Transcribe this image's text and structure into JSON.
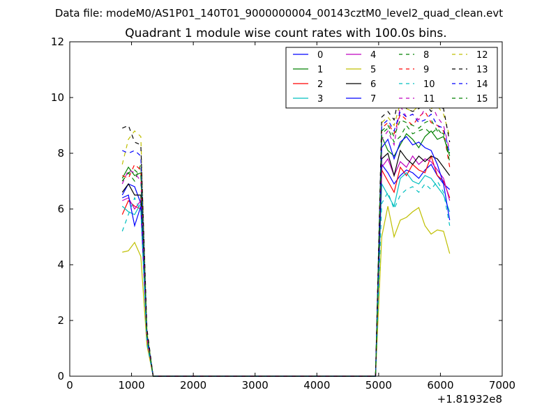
{
  "chart_data": {
    "type": "line",
    "suptitle": "Data file: modeM0/AS1P01_140T01_9000000004_00143cztM0_level2_quad_clean.evt",
    "title": "Quadrant 1 module wise count rates with 100.0s bins.",
    "xlabel": "",
    "ylabel": "",
    "xlim": [
      0,
      7000
    ],
    "ylim": [
      0,
      12
    ],
    "x_offset_label": "+1.81932e8",
    "x_ticks": [
      0,
      1000,
      2000,
      3000,
      4000,
      5000,
      6000,
      7000
    ],
    "y_ticks": [
      0,
      2,
      4,
      6,
      8,
      10,
      12
    ],
    "grid": false,
    "legend_position": "top-right",
    "legend_columns": 4,
    "x": [
      850,
      950,
      1050,
      1150,
      1250,
      1350,
      1450,
      4950,
      5050,
      5150,
      5250,
      5350,
      5450,
      5550,
      5650,
      5750,
      5850,
      5950,
      6050,
      6150
    ],
    "series": [
      {
        "name": "0",
        "color": "#0000ff",
        "dash": "solid",
        "values": [
          6.5,
          6.9,
          6.8,
          6.2,
          1.4,
          0,
          0,
          0,
          7.6,
          7.3,
          6.9,
          7.2,
          7.4,
          7.3,
          7.1,
          7.4,
          7.6,
          7.2,
          6.9,
          6.7
        ]
      },
      {
        "name": "1",
        "color": "#008000",
        "dash": "solid",
        "values": [
          7.1,
          7.5,
          7.2,
          7.3,
          1.5,
          0,
          0,
          0,
          8.6,
          8.1,
          7.9,
          8.3,
          8.7,
          8.5,
          8.2,
          8.6,
          8.8,
          8.5,
          8.6,
          7.9
        ]
      },
      {
        "name": "2",
        "color": "#ff0000",
        "dash": "solid",
        "values": [
          5.8,
          6.3,
          6.1,
          6.0,
          1.3,
          0,
          0,
          0,
          7.4,
          7.0,
          6.6,
          7.5,
          7.2,
          7.6,
          7.4,
          7.3,
          7.9,
          7.2,
          7.0,
          6.4
        ]
      },
      {
        "name": "3",
        "color": "#00bfbf",
        "dash": "solid",
        "values": [
          6.1,
          5.9,
          5.8,
          6.2,
          1.2,
          0,
          0,
          0,
          6.9,
          6.5,
          6.1,
          7.1,
          7.3,
          7.0,
          6.9,
          7.2,
          7.1,
          6.8,
          6.5,
          5.9
        ]
      },
      {
        "name": "4",
        "color": "#bf00bf",
        "dash": "solid",
        "values": [
          6.3,
          6.4,
          6.0,
          6.3,
          1.3,
          0,
          0,
          0,
          7.5,
          7.8,
          7.2,
          7.7,
          7.5,
          7.9,
          7.6,
          7.8,
          7.7,
          7.4,
          7.1,
          6.3
        ]
      },
      {
        "name": "5",
        "color": "#bfbf00",
        "dash": "solid",
        "values": [
          4.45,
          4.5,
          4.8,
          4.3,
          1.1,
          0,
          0,
          0,
          5.0,
          6.1,
          5.0,
          5.6,
          5.7,
          5.9,
          6.05,
          5.4,
          5.1,
          5.25,
          5.2,
          4.4
        ]
      },
      {
        "name": "6",
        "color": "#000000",
        "dash": "solid",
        "values": [
          6.6,
          6.9,
          6.5,
          6.5,
          1.4,
          0,
          0,
          0,
          7.8,
          8.0,
          7.2,
          8.1,
          7.8,
          7.6,
          7.9,
          7.7,
          7.9,
          7.8,
          7.5,
          7.2
        ]
      },
      {
        "name": "7",
        "color": "#0000ff",
        "dash": "solid",
        "values": [
          6.4,
          6.5,
          5.4,
          6.1,
          1.4,
          0,
          0,
          0,
          8.2,
          8.5,
          7.8,
          8.4,
          8.6,
          8.3,
          8.4,
          8.2,
          8.1,
          7.6,
          6.9,
          5.6
        ]
      },
      {
        "name": "8",
        "color": "#008000",
        "dash": "dashed",
        "values": [
          7.0,
          7.3,
          7.0,
          7.6,
          1.5,
          0,
          0,
          0,
          8.7,
          8.9,
          8.4,
          8.6,
          9.0,
          8.7,
          8.8,
          8.9,
          8.7,
          8.9,
          8.6,
          8.0
        ]
      },
      {
        "name": "9",
        "color": "#ff0000",
        "dash": "dashed",
        "values": [
          7.2,
          7.1,
          7.6,
          7.4,
          1.4,
          0,
          0,
          0,
          8.9,
          9.1,
          8.7,
          9.4,
          9.2,
          9.0,
          9.3,
          9.5,
          9.1,
          9.0,
          8.8,
          7.5
        ]
      },
      {
        "name": "10",
        "color": "#00bfbf",
        "dash": "dashed",
        "values": [
          5.2,
          5.8,
          6.4,
          5.9,
          1.2,
          0,
          0,
          0,
          6.2,
          6.6,
          6.0,
          6.5,
          6.7,
          6.8,
          6.6,
          6.9,
          6.7,
          7.0,
          6.6,
          5.4
        ]
      },
      {
        "name": "11",
        "color": "#bf00bf",
        "dash": "dashed",
        "values": [
          6.9,
          7.4,
          7.3,
          7.0,
          1.4,
          0,
          0,
          0,
          8.5,
          8.8,
          8.3,
          9.7,
          9.3,
          9.4,
          9.2,
          9.6,
          9.8,
          9.3,
          9.0,
          8.1
        ]
      },
      {
        "name": "12",
        "color": "#bfbf00",
        "dash": "dashed",
        "values": [
          7.6,
          8.5,
          8.8,
          8.6,
          1.6,
          0,
          0,
          0,
          9.1,
          9.3,
          9.0,
          9.8,
          9.6,
          9.5,
          9.7,
          9.9,
          9.6,
          9.7,
          9.4,
          8.6
        ]
      },
      {
        "name": "13",
        "color": "#000000",
        "dash": "dashed",
        "values": [
          8.9,
          9.0,
          8.4,
          8.3,
          1.7,
          0,
          0,
          0,
          9.3,
          9.5,
          9.2,
          10.3,
          9.6,
          9.5,
          9.6,
          9.8,
          9.5,
          9.7,
          9.6,
          8.4
        ]
      },
      {
        "name": "14",
        "color": "#0000ff",
        "dash": "dashed",
        "values": [
          8.1,
          8.0,
          8.1,
          7.9,
          1.5,
          0,
          0,
          0,
          9.0,
          9.2,
          8.8,
          9.5,
          9.3,
          9.4,
          9.1,
          9.2,
          9.4,
          9.0,
          8.9,
          8.0
        ]
      },
      {
        "name": "15",
        "color": "#008000",
        "dash": "dashed",
        "values": [
          7.0,
          7.3,
          7.4,
          7.2,
          1.5,
          0,
          0,
          0,
          8.8,
          9.0,
          8.6,
          9.2,
          9.1,
          9.0,
          8.9,
          9.1,
          9.2,
          8.8,
          8.7,
          7.7
        ]
      }
    ]
  }
}
